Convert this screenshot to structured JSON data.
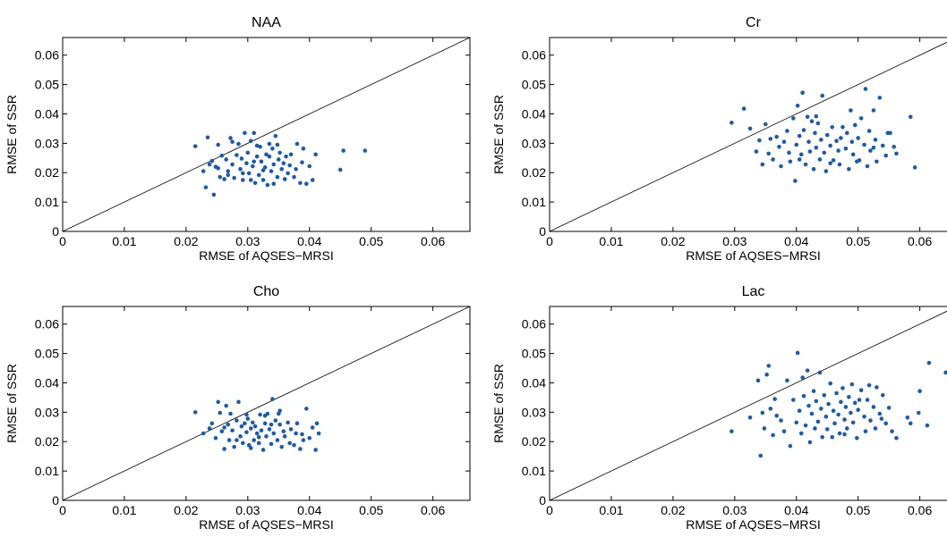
{
  "chart_data": [
    {
      "type": "scatter",
      "title": "NAA",
      "xlabel": "RMSE of AQSES−MRSI",
      "ylabel": "RMSE of SSR",
      "xlim": [
        0,
        0.066
      ],
      "ylim": [
        0,
        0.066
      ],
      "xticks": [
        "0",
        "0.01",
        "0.02",
        "0.03",
        "0.04",
        "0.05",
        "0.06"
      ],
      "yticks": [
        "0",
        "0.01",
        "0.02",
        "0.03",
        "0.04",
        "0.05",
        "0.06"
      ],
      "reference_line": "y = x",
      "marker_color": "#1f5aa6",
      "points": [
        [
          0.0215,
          0.029
        ],
        [
          0.0228,
          0.0205
        ],
        [
          0.0232,
          0.015
        ],
        [
          0.0235,
          0.032
        ],
        [
          0.0238,
          0.0228
        ],
        [
          0.0242,
          0.024
        ],
        [
          0.0245,
          0.0125
        ],
        [
          0.0248,
          0.022
        ],
        [
          0.0252,
          0.0295
        ],
        [
          0.0255,
          0.0185
        ],
        [
          0.0258,
          0.0258
        ],
        [
          0.0262,
          0.0178
        ],
        [
          0.0265,
          0.0245
        ],
        [
          0.0268,
          0.0205
        ],
        [
          0.0272,
          0.0318
        ],
        [
          0.0275,
          0.0228
        ],
        [
          0.0278,
          0.0182
        ],
        [
          0.0282,
          0.026
        ],
        [
          0.0285,
          0.0298
        ],
        [
          0.0288,
          0.0212
        ],
        [
          0.029,
          0.0248
        ],
        [
          0.0292,
          0.0175
        ],
        [
          0.0295,
          0.0335
        ],
        [
          0.0298,
          0.0232
        ],
        [
          0.03,
          0.0268
        ],
        [
          0.0302,
          0.0198
        ],
        [
          0.0305,
          0.0308
        ],
        [
          0.0308,
          0.0222
        ],
        [
          0.031,
          0.0335
        ],
        [
          0.0312,
          0.0165
        ],
        [
          0.0315,
          0.0255
        ],
        [
          0.0318,
          0.0192
        ],
        [
          0.032,
          0.0288
        ],
        [
          0.0322,
          0.0238
        ],
        [
          0.0325,
          0.0175
        ],
        [
          0.0328,
          0.0218
        ],
        [
          0.033,
          0.0262
        ],
        [
          0.0332,
          0.0158
        ],
        [
          0.0335,
          0.0298
        ],
        [
          0.0338,
          0.0205
        ],
        [
          0.034,
          0.0282
        ],
        [
          0.0342,
          0.0228
        ],
        [
          0.0345,
          0.0325
        ],
        [
          0.0348,
          0.0185
        ],
        [
          0.035,
          0.0245
        ],
        [
          0.0352,
          0.0268
        ],
        [
          0.0355,
          0.0212
        ],
        [
          0.0358,
          0.0232
        ],
        [
          0.036,
          0.0178
        ],
        [
          0.0362,
          0.0255
        ],
        [
          0.0365,
          0.0198
        ],
        [
          0.0368,
          0.0225
        ],
        [
          0.037,
          0.0262
        ],
        [
          0.0375,
          0.0185
        ],
        [
          0.0378,
          0.0212
        ],
        [
          0.038,
          0.0298
        ],
        [
          0.0385,
          0.0165
        ],
        [
          0.0388,
          0.0235
        ],
        [
          0.039,
          0.0282
        ],
        [
          0.0395,
          0.0162
        ],
        [
          0.04,
          0.0222
        ],
        [
          0.0405,
          0.0175
        ],
        [
          0.041,
          0.0262
        ],
        [
          0.045,
          0.021
        ],
        [
          0.0455,
          0.0275
        ],
        [
          0.049,
          0.0275
        ],
        [
          0.0275,
          0.0305
        ],
        [
          0.0292,
          0.0198
        ],
        [
          0.0315,
          0.0292
        ],
        [
          0.0335,
          0.0255
        ],
        [
          0.0342,
          0.0162
        ],
        [
          0.0305,
          0.0175
        ],
        [
          0.0325,
          0.0208
        ],
        [
          0.0348,
          0.0295
        ],
        [
          0.031,
          0.0238
        ],
        [
          0.0268,
          0.0192
        ],
        [
          0.0252,
          0.0215
        ]
      ]
    },
    {
      "type": "scatter",
      "title": "Cr",
      "xlabel": "RMSE of AQSES−MRSI",
      "ylabel": "RMSE of SSR",
      "xlim": [
        0,
        0.066
      ],
      "ylim": [
        0,
        0.066
      ],
      "xticks": [
        "0",
        "0.01",
        "0.02",
        "0.03",
        "0.04",
        "0.05",
        "0.06"
      ],
      "yticks": [
        "0",
        "0.01",
        "0.02",
        "0.03",
        "0.04",
        "0.05",
        "0.06"
      ],
      "reference_line": "y = x",
      "marker_color": "#1f5aa6",
      "points": [
        [
          0.0295,
          0.037
        ],
        [
          0.0315,
          0.0418
        ],
        [
          0.0325,
          0.035
        ],
        [
          0.0335,
          0.0272
        ],
        [
          0.034,
          0.031
        ],
        [
          0.0345,
          0.0228
        ],
        [
          0.035,
          0.0365
        ],
        [
          0.0355,
          0.0265
        ],
        [
          0.0358,
          0.0315
        ],
        [
          0.0362,
          0.0245
        ],
        [
          0.0368,
          0.0322
        ],
        [
          0.0372,
          0.0288
        ],
        [
          0.0375,
          0.0222
        ],
        [
          0.038,
          0.0305
        ],
        [
          0.0385,
          0.0342
        ],
        [
          0.0388,
          0.0268
        ],
        [
          0.039,
          0.0238
        ],
        [
          0.0395,
          0.0385
        ],
        [
          0.0398,
          0.0172
        ],
        [
          0.04,
          0.0295
        ],
        [
          0.0402,
          0.0428
        ],
        [
          0.0405,
          0.0325
        ],
        [
          0.0408,
          0.0262
        ],
        [
          0.041,
          0.0472
        ],
        [
          0.0412,
          0.0345
        ],
        [
          0.0415,
          0.0228
        ],
        [
          0.0418,
          0.039
        ],
        [
          0.042,
          0.0305
        ],
        [
          0.0422,
          0.0272
        ],
        [
          0.0425,
          0.0375
        ],
        [
          0.0428,
          0.0212
        ],
        [
          0.043,
          0.0335
        ],
        [
          0.0432,
          0.0285
        ],
        [
          0.0435,
          0.0368
        ],
        [
          0.0438,
          0.0245
        ],
        [
          0.044,
          0.0312
        ],
        [
          0.0442,
          0.0462
        ],
        [
          0.0445,
          0.0268
        ],
        [
          0.0448,
          0.0205
        ],
        [
          0.045,
          0.0328
        ],
        [
          0.0455,
          0.0292
        ],
        [
          0.0458,
          0.0355
        ],
        [
          0.046,
          0.0242
        ],
        [
          0.0465,
          0.0308
        ],
        [
          0.0468,
          0.0275
        ],
        [
          0.047,
          0.0228
        ],
        [
          0.0475,
          0.0355
        ],
        [
          0.048,
          0.0282
        ],
        [
          0.0482,
          0.0335
        ],
        [
          0.0485,
          0.0212
        ],
        [
          0.0488,
          0.0412
        ],
        [
          0.049,
          0.0305
        ],
        [
          0.0492,
          0.0262
        ],
        [
          0.0495,
          0.0362
        ],
        [
          0.0498,
          0.0238
        ],
        [
          0.05,
          0.0318
        ],
        [
          0.0505,
          0.0385
        ],
        [
          0.051,
          0.0295
        ],
        [
          0.0512,
          0.0485
        ],
        [
          0.0515,
          0.0222
        ],
        [
          0.0518,
          0.0342
        ],
        [
          0.052,
          0.0275
        ],
        [
          0.0525,
          0.0412
        ],
        [
          0.0528,
          0.0312
        ],
        [
          0.053,
          0.0238
        ],
        [
          0.0535,
          0.0455
        ],
        [
          0.054,
          0.0292
        ],
        [
          0.0545,
          0.0258
        ],
        [
          0.0548,
          0.0335
        ],
        [
          0.0552,
          0.0335
        ],
        [
          0.0558,
          0.0288
        ],
        [
          0.0562,
          0.0265
        ],
        [
          0.0585,
          0.039
        ],
        [
          0.0592,
          0.0218
        ],
        [
          0.0405,
          0.0245
        ],
        [
          0.0432,
          0.0392
        ],
        [
          0.0455,
          0.0232
        ],
        [
          0.0472,
          0.0318
        ],
        [
          0.0502,
          0.0242
        ],
        [
          0.0525,
          0.0285
        ]
      ]
    },
    {
      "type": "scatter",
      "title": "Cho",
      "xlabel": "RMSE of AQSES−MRSI",
      "ylabel": "RMSE of SSR",
      "xlim": [
        0,
        0.066
      ],
      "ylim": [
        0,
        0.066
      ],
      "xticks": [
        "0",
        "0.01",
        "0.02",
        "0.03",
        "0.04",
        "0.05",
        "0.06"
      ],
      "yticks": [
        "0",
        "0.01",
        "0.02",
        "0.03",
        "0.04",
        "0.05",
        "0.06"
      ],
      "reference_line": "y = x",
      "marker_color": "#1f5aa6",
      "points": [
        [
          0.0215,
          0.03
        ],
        [
          0.0228,
          0.0228
        ],
        [
          0.0238,
          0.0245
        ],
        [
          0.0242,
          0.0262
        ],
        [
          0.0248,
          0.0212
        ],
        [
          0.0252,
          0.0335
        ],
        [
          0.0255,
          0.0298
        ],
        [
          0.0258,
          0.0235
        ],
        [
          0.0262,
          0.0175
        ],
        [
          0.0265,
          0.0322
        ],
        [
          0.0268,
          0.0258
        ],
        [
          0.027,
          0.0205
        ],
        [
          0.0272,
          0.0295
        ],
        [
          0.0275,
          0.0238
        ],
        [
          0.0278,
          0.0182
        ],
        [
          0.0282,
          0.0272
        ],
        [
          0.0285,
          0.0335
        ],
        [
          0.0288,
          0.0218
        ],
        [
          0.029,
          0.0252
        ],
        [
          0.0292,
          0.0195
        ],
        [
          0.0295,
          0.0262
        ],
        [
          0.0298,
          0.0232
        ],
        [
          0.03,
          0.0278
        ],
        [
          0.0302,
          0.0188
        ],
        [
          0.0305,
          0.0245
        ],
        [
          0.0308,
          0.0265
        ],
        [
          0.031,
          0.0205
        ],
        [
          0.0312,
          0.0252
        ],
        [
          0.0315,
          0.0228
        ],
        [
          0.0318,
          0.0195
        ],
        [
          0.032,
          0.0292
        ],
        [
          0.0322,
          0.0238
        ],
        [
          0.0325,
          0.0172
        ],
        [
          0.0328,
          0.0262
        ],
        [
          0.033,
          0.0218
        ],
        [
          0.0332,
          0.0295
        ],
        [
          0.0335,
          0.0242
        ],
        [
          0.0338,
          0.0192
        ],
        [
          0.034,
          0.0345
        ],
        [
          0.0342,
          0.0228
        ],
        [
          0.0345,
          0.0272
        ],
        [
          0.0348,
          0.0205
        ],
        [
          0.035,
          0.0295
        ],
        [
          0.0352,
          0.0258
        ],
        [
          0.0355,
          0.0182
        ],
        [
          0.0358,
          0.0235
        ],
        [
          0.036,
          0.0218
        ],
        [
          0.0365,
          0.0265
        ],
        [
          0.0368,
          0.0195
        ],
        [
          0.037,
          0.0242
        ],
        [
          0.0375,
          0.0188
        ],
        [
          0.0378,
          0.0228
        ],
        [
          0.038,
          0.0262
        ],
        [
          0.0385,
          0.0175
        ],
        [
          0.0388,
          0.0225
        ],
        [
          0.039,
          0.0205
        ],
        [
          0.0395,
          0.0312
        ],
        [
          0.04,
          0.0212
        ],
        [
          0.0405,
          0.0248
        ],
        [
          0.041,
          0.0172
        ],
        [
          0.0412,
          0.0262
        ],
        [
          0.0415,
          0.0228
        ],
        [
          0.0298,
          0.0292
        ],
        [
          0.0318,
          0.0215
        ],
        [
          0.0328,
          0.0288
        ],
        [
          0.0338,
          0.0258
        ],
        [
          0.0352,
          0.0305
        ],
        [
          0.0305,
          0.0178
        ],
        [
          0.0282,
          0.0205
        ],
        [
          0.0262,
          0.0248
        ]
      ]
    },
    {
      "type": "scatter",
      "title": "Lac",
      "xlabel": "RMSE of AQSES−MRSI",
      "ylabel": "RMSE of SSR",
      "xlim": [
        0,
        0.066
      ],
      "ylim": [
        0,
        0.066
      ],
      "xticks": [
        "0",
        "0.01",
        "0.02",
        "0.03",
        "0.04",
        "0.05",
        "0.06"
      ],
      "yticks": [
        "0",
        "0.01",
        "0.02",
        "0.03",
        "0.04",
        "0.05",
        "0.06"
      ],
      "reference_line": "y = x",
      "marker_color": "#1f5aa6",
      "points": [
        [
          0.0295,
          0.0235
        ],
        [
          0.0325,
          0.0282
        ],
        [
          0.0338,
          0.0408
        ],
        [
          0.0342,
          0.0152
        ],
        [
          0.0345,
          0.0298
        ],
        [
          0.0348,
          0.0245
        ],
        [
          0.0352,
          0.0428
        ],
        [
          0.0355,
          0.0458
        ],
        [
          0.0358,
          0.0312
        ],
        [
          0.0362,
          0.0222
        ],
        [
          0.0368,
          0.0288
        ],
        [
          0.0375,
          0.0272
        ],
        [
          0.038,
          0.0235
        ],
        [
          0.0385,
          0.0408
        ],
        [
          0.039,
          0.0185
        ],
        [
          0.0395,
          0.0342
        ],
        [
          0.04,
          0.0265
        ],
        [
          0.0402,
          0.0502
        ],
        [
          0.0405,
          0.0305
        ],
        [
          0.0408,
          0.0228
        ],
        [
          0.041,
          0.0418
        ],
        [
          0.0412,
          0.0355
        ],
        [
          0.0415,
          0.0255
        ],
        [
          0.0418,
          0.0442
        ],
        [
          0.042,
          0.0322
        ],
        [
          0.0422,
          0.0198
        ],
        [
          0.0425,
          0.0295
        ],
        [
          0.0428,
          0.0372
        ],
        [
          0.043,
          0.0245
        ],
        [
          0.0432,
          0.0338
        ],
        [
          0.0435,
          0.0268
        ],
        [
          0.0438,
          0.0435
        ],
        [
          0.044,
          0.0312
        ],
        [
          0.0442,
          0.0215
        ],
        [
          0.0445,
          0.0358
        ],
        [
          0.0448,
          0.0285
        ],
        [
          0.045,
          0.0242
        ],
        [
          0.0452,
          0.0328
        ],
        [
          0.0455,
          0.0398
        ],
        [
          0.0458,
          0.0215
        ],
        [
          0.046,
          0.0305
        ],
        [
          0.0462,
          0.0262
        ],
        [
          0.0465,
          0.0365
        ],
        [
          0.0468,
          0.0292
        ],
        [
          0.047,
          0.0228
        ],
        [
          0.0472,
          0.0335
        ],
        [
          0.0475,
          0.0382
        ],
        [
          0.0478,
          0.0275
        ],
        [
          0.048,
          0.0318
        ],
        [
          0.0482,
          0.0245
        ],
        [
          0.0485,
          0.0352
        ],
        [
          0.0488,
          0.0298
        ],
        [
          0.049,
          0.0395
        ],
        [
          0.0492,
          0.0265
        ],
        [
          0.0495,
          0.0332
        ],
        [
          0.0498,
          0.0212
        ],
        [
          0.05,
          0.0308
        ],
        [
          0.0505,
          0.0375
        ],
        [
          0.051,
          0.0285
        ],
        [
          0.0512,
          0.0235
        ],
        [
          0.0515,
          0.0342
        ],
        [
          0.0518,
          0.0392
        ],
        [
          0.052,
          0.0272
        ],
        [
          0.0525,
          0.0318
        ],
        [
          0.0528,
          0.0245
        ],
        [
          0.053,
          0.0385
        ],
        [
          0.0535,
          0.0295
        ],
        [
          0.054,
          0.0358
        ],
        [
          0.0545,
          0.0262
        ],
        [
          0.055,
          0.0315
        ],
        [
          0.0555,
          0.0235
        ],
        [
          0.0562,
          0.0212
        ],
        [
          0.058,
          0.0282
        ],
        [
          0.0585,
          0.0262
        ],
        [
          0.06,
          0.0372
        ],
        [
          0.0598,
          0.0298
        ],
        [
          0.0612,
          0.0255
        ],
        [
          0.0615,
          0.0468
        ],
        [
          0.0642,
          0.0435
        ],
        [
          0.0365,
          0.0345
        ],
        [
          0.0478,
          0.0225
        ],
        [
          0.0502,
          0.0342
        ],
        [
          0.0538,
          0.0278
        ]
      ]
    }
  ]
}
